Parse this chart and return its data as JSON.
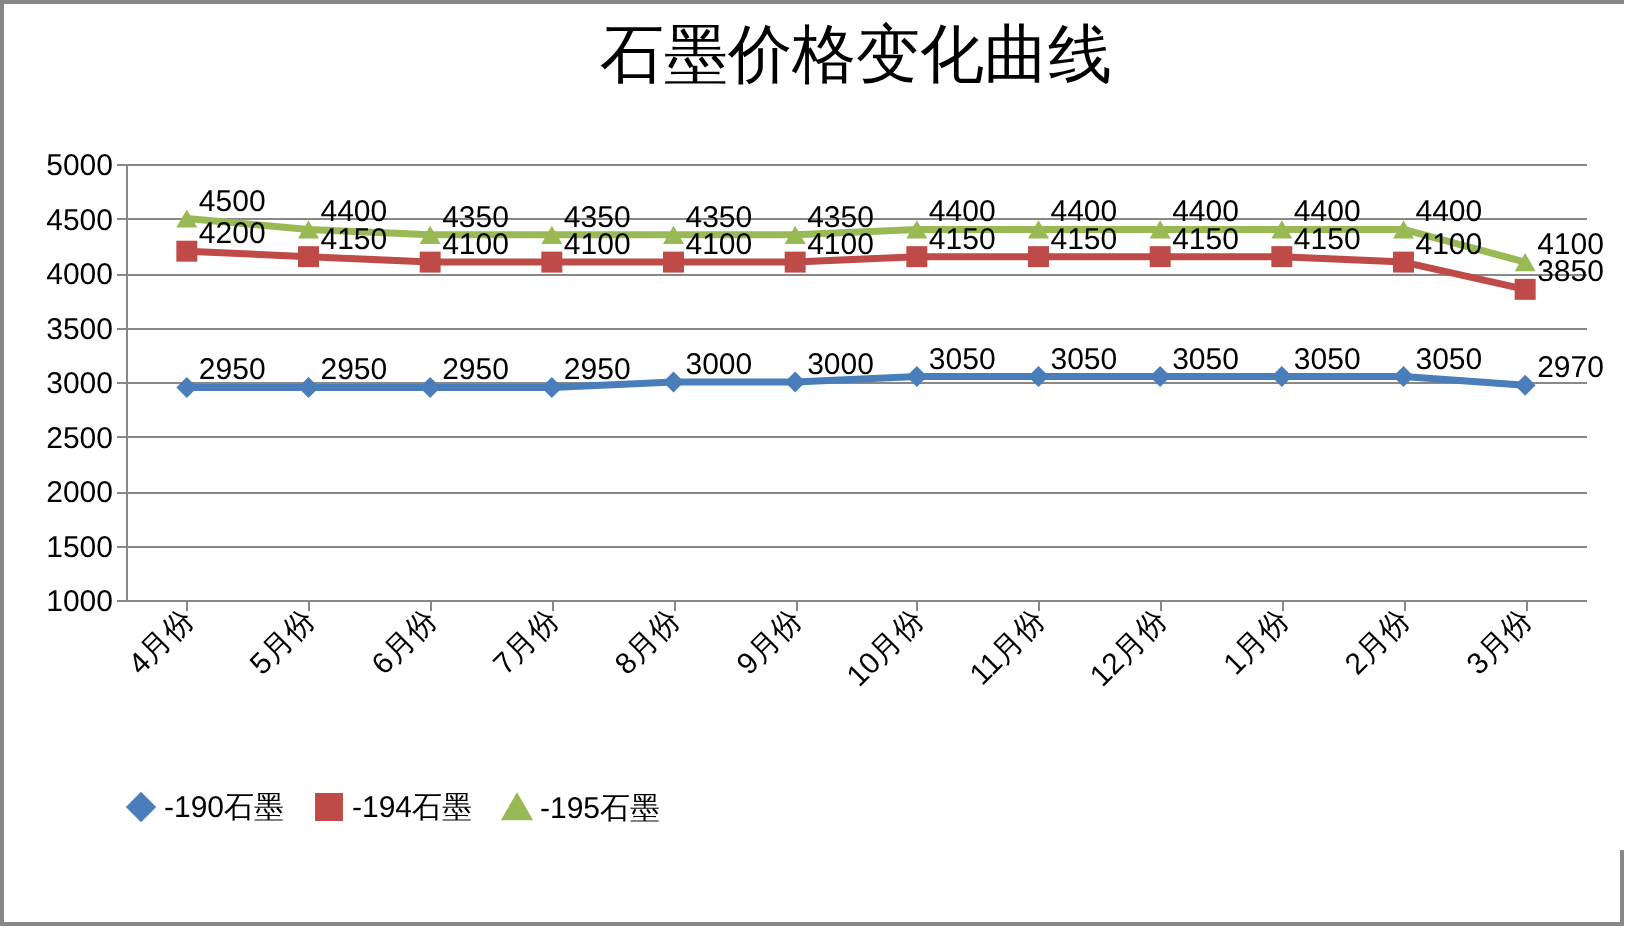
{
  "chart_data": {
    "type": "line",
    "title": "石墨价格变化曲线",
    "categories": [
      "4月份",
      "5月份",
      "6月份",
      "7月份",
      "8月份",
      "9月份",
      "10月份",
      "11月份",
      "12月份",
      "1月份",
      "2月份",
      "3月份"
    ],
    "series": [
      {
        "name": "-190石墨",
        "color": "#4a7ebb",
        "marker": "diamond",
        "values": [
          2950,
          2950,
          2950,
          2950,
          3000,
          3000,
          3050,
          3050,
          3050,
          3050,
          3050,
          2970
        ]
      },
      {
        "name": "-194石墨",
        "color": "#be4b48",
        "marker": "square",
        "values": [
          4200,
          4150,
          4100,
          4100,
          4100,
          4100,
          4150,
          4150,
          4150,
          4150,
          4100,
          3850
        ]
      },
      {
        "name": "-195石墨",
        "color": "#98b954",
        "marker": "triangle",
        "values": [
          4500,
          4400,
          4350,
          4350,
          4350,
          4350,
          4400,
          4400,
          4400,
          4400,
          4400,
          4100
        ]
      }
    ],
    "ylim": [
      1000,
      5000
    ],
    "yticks": [
      1000,
      1500,
      2000,
      2500,
      3000,
      3500,
      4000,
      4500,
      5000
    ],
    "grid": "y",
    "legend": "bottom",
    "data_labels": true
  }
}
